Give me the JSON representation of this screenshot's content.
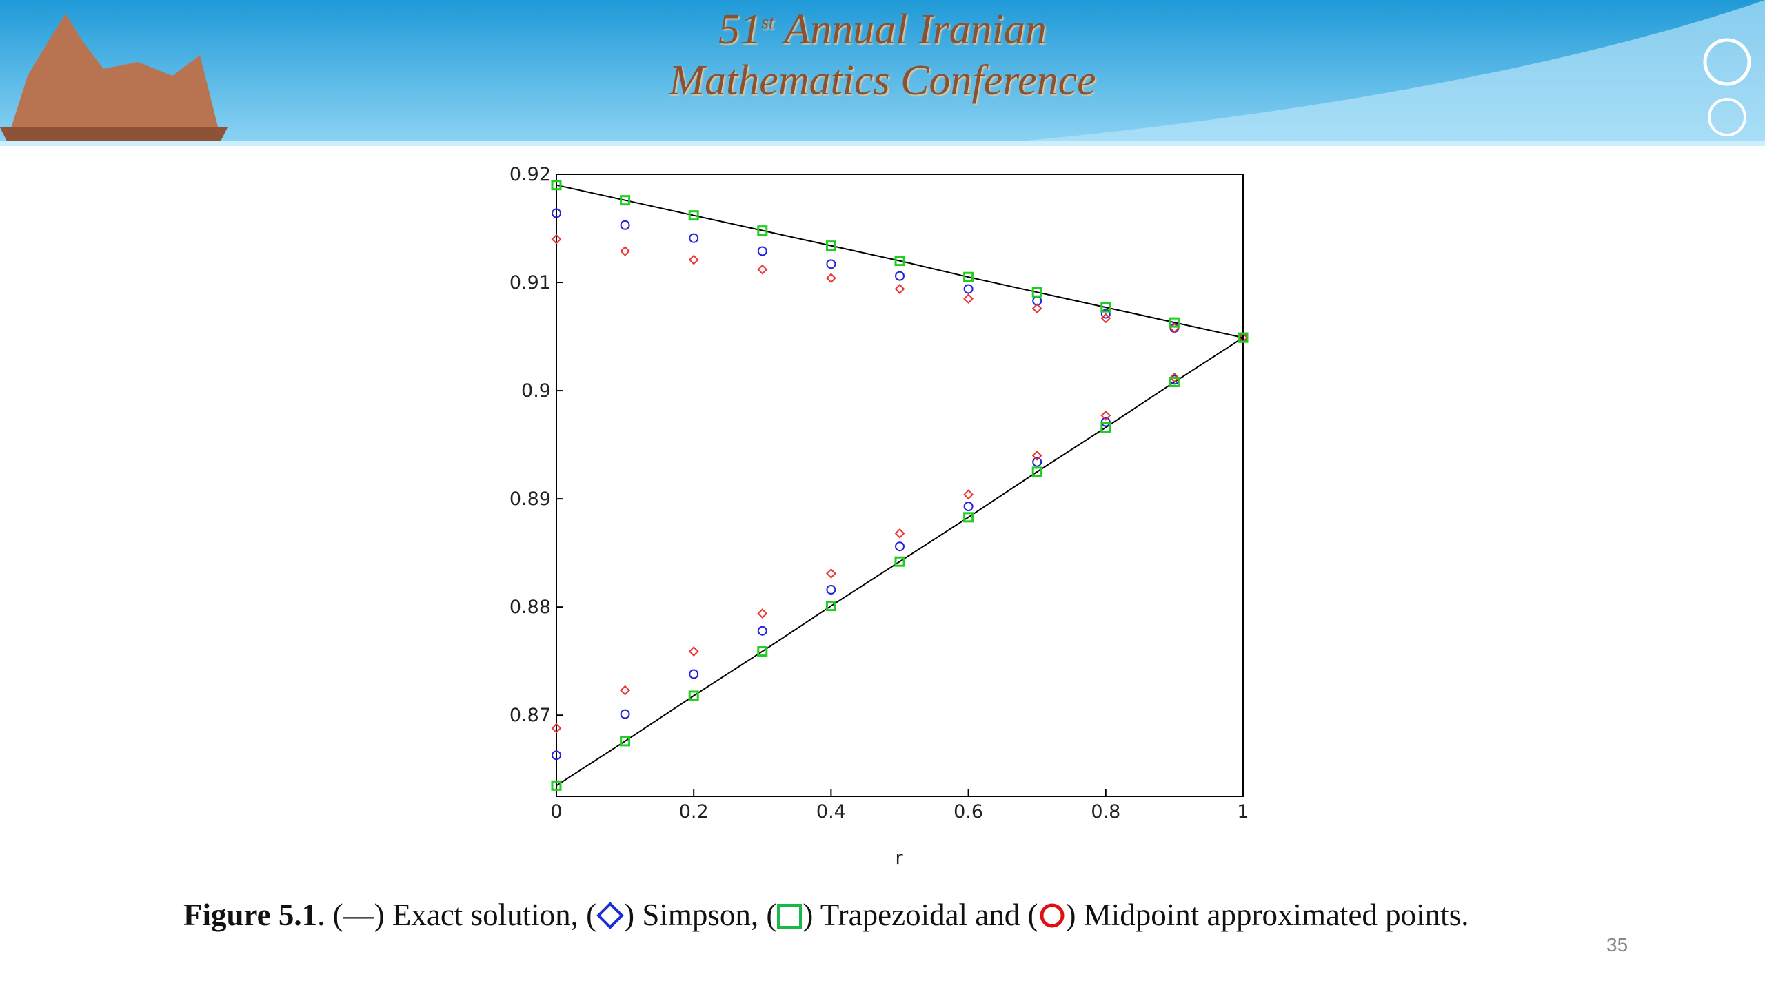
{
  "header": {
    "number": "51",
    "superscript": "st",
    "line1": "Annual Iranian",
    "line2": "Mathematics Conference"
  },
  "chart_data": {
    "type": "scatter",
    "x": [
      0,
      0.1,
      0.2,
      0.3,
      0.4,
      0.5,
      0.6,
      0.7,
      0.8,
      0.9,
      1
    ],
    "xlim": [
      0,
      1
    ],
    "xticks": [
      0,
      0.2,
      0.4,
      0.6,
      0.8,
      1
    ],
    "ylim": [
      0.8625,
      0.92
    ],
    "yticks": [
      0.87,
      0.88,
      0.89,
      0.9,
      0.91,
      0.92
    ],
    "x_label": "r",
    "series": [
      {
        "marker": "line",
        "color": "#000000",
        "values": [
          0.919,
          0.9176,
          0.9162,
          0.9148,
          0.9134,
          0.912,
          0.9105,
          0.9091,
          0.9077,
          0.9063,
          0.9049
        ]
      },
      {
        "marker": "line",
        "color": "#000000",
        "values": [
          0.8635,
          0.8676,
          0.8718,
          0.8759,
          0.8801,
          0.8842,
          0.8883,
          0.8925,
          0.8966,
          0.9008,
          0.9049
        ]
      },
      {
        "marker": "circle",
        "color": "#2222dd",
        "values": [
          0.9164,
          0.9153,
          0.9141,
          0.9129,
          0.9117,
          0.9106,
          0.9094,
          0.9083,
          0.9071,
          0.9058,
          0.9049
        ]
      },
      {
        "marker": "circle",
        "color": "#2222dd",
        "values": [
          0.8663,
          0.8701,
          0.8738,
          0.8778,
          0.8816,
          0.8856,
          0.8893,
          0.8934,
          0.8971,
          0.901,
          0.9049
        ]
      },
      {
        "marker": "diamond",
        "color": "#ee3333",
        "values": [
          0.914,
          0.9129,
          0.9121,
          0.9112,
          0.9104,
          0.9094,
          0.9085,
          0.9076,
          0.9067,
          0.9058,
          0.9049
        ]
      },
      {
        "marker": "diamond",
        "color": "#ee3333",
        "values": [
          0.8688,
          0.8723,
          0.8759,
          0.8794,
          0.8831,
          0.8868,
          0.8904,
          0.894,
          0.8977,
          0.9012,
          0.9049
        ]
      },
      {
        "marker": "square",
        "color": "#22cc22",
        "values": [
          0.919,
          0.9176,
          0.9162,
          0.9148,
          0.9134,
          0.912,
          0.9105,
          0.9091,
          0.9077,
          0.9063,
          0.9049
        ]
      },
      {
        "marker": "square",
        "color": "#22cc22",
        "values": [
          0.8635,
          0.8676,
          0.8718,
          0.8759,
          0.8801,
          0.8842,
          0.8883,
          0.8925,
          0.8966,
          0.9008,
          0.9049
        ]
      }
    ]
  },
  "caption": {
    "label": "Figure 5.1",
    "parts": [
      ". (—) Exact solution, (",
      ") Simpson, (",
      ") Trapezoidal and (",
      ") Midpoint approximated points."
    ]
  },
  "page_number": "35"
}
